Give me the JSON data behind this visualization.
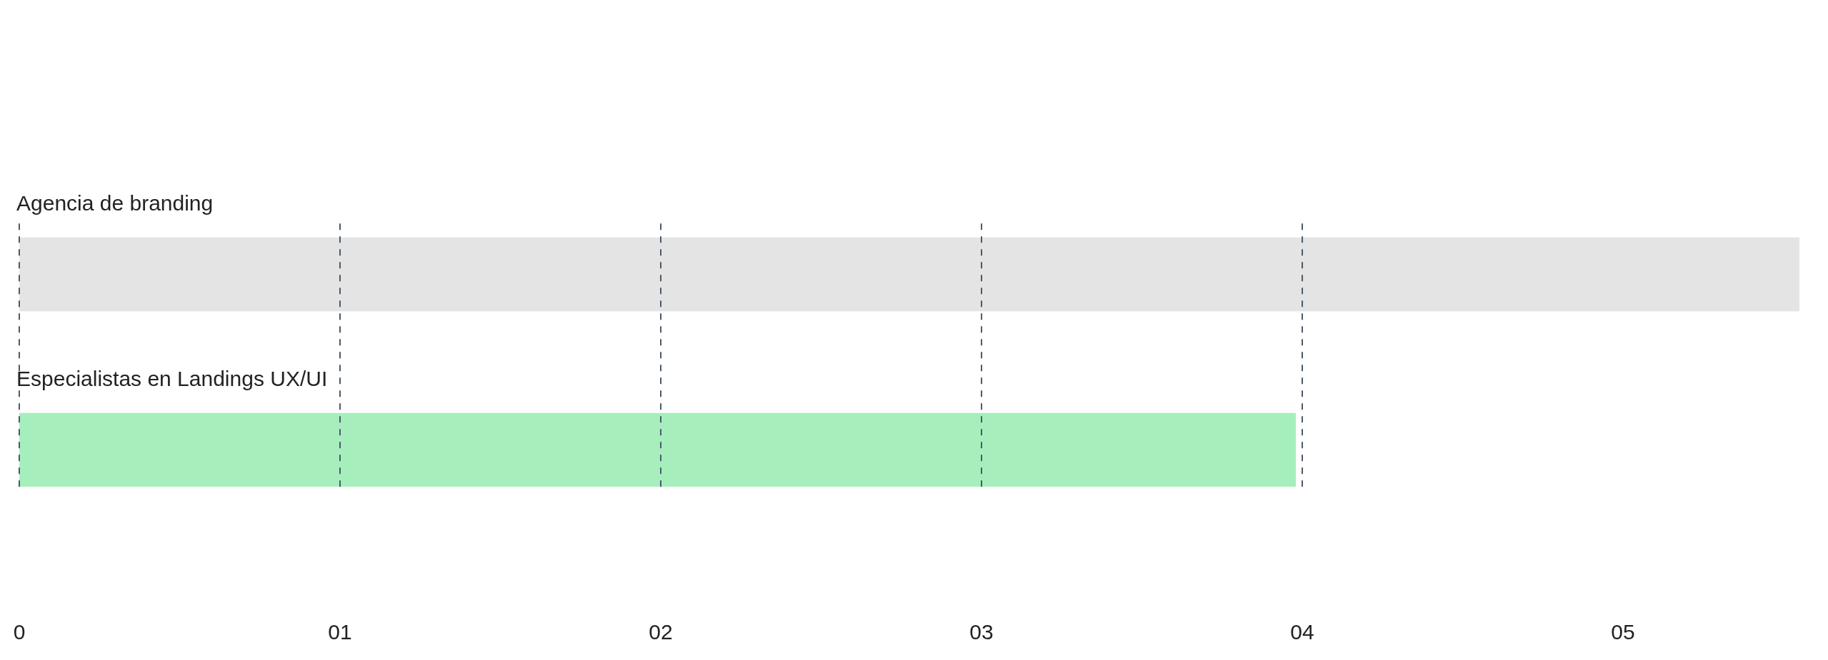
{
  "chart_data": {
    "type": "bar",
    "orientation": "horizontal",
    "categories": [
      "Agencia de branding",
      "Especialistas en Landings UX/UI"
    ],
    "values": [
      5.55,
      3.98
    ],
    "colors": [
      "#e4e4e4",
      "#a6efbd"
    ],
    "xlim": [
      -0.02,
      5.55
    ],
    "xticks": [
      0,
      {
        "value": 1,
        "label": "01"
      },
      {
        "value": 2,
        "label": "02"
      },
      {
        "value": 3,
        "label": "03"
      },
      {
        "value": 4,
        "label": "04"
      },
      {
        "value": 5,
        "label": "05"
      }
    ],
    "ref_lines": [
      {
        "axis": "x",
        "value": 0,
        "label": null,
        "color": "#4a5a6a",
        "line_style": "dashed"
      },
      {
        "axis": "x",
        "value": 1,
        "label": null,
        "color": "#4a5a6a",
        "line_style": "dashed"
      },
      {
        "axis": "x",
        "value": 2,
        "label": null,
        "color": "#4a5a6a",
        "line_style": "dashed"
      },
      {
        "axis": "x",
        "value": 3,
        "label": null,
        "color": "#4a5a6a",
        "line_style": "dashed"
      },
      {
        "axis": "x",
        "value": 4,
        "label": null,
        "color": "#4a5a6a",
        "line_style": "dashed"
      }
    ],
    "tick_labels": "x"
  }
}
